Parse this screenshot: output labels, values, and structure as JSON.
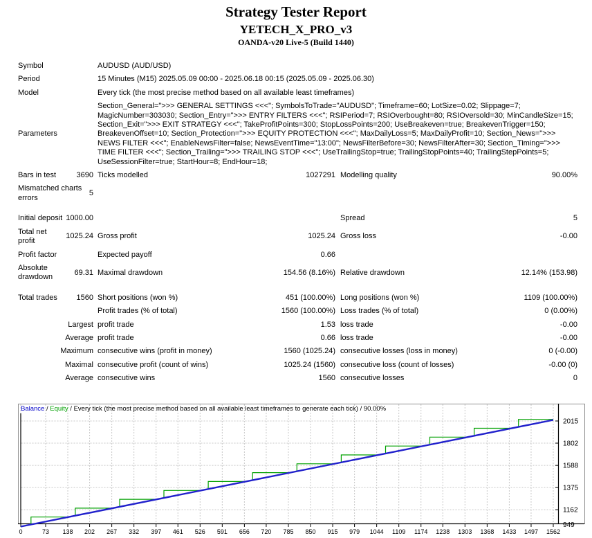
{
  "header": {
    "title": "Strategy Tester Report",
    "ea_name": "YETECH_X_PRO_v3",
    "server": "OANDA-v20 Live-5 (Build 1440)"
  },
  "info_rows": [
    {
      "label": "Symbol",
      "value": "AUDUSD (AUD/USD)"
    },
    {
      "label": "Period",
      "value": "15 Minutes (M15) 2025.05.09 00:00 - 2025.06.18 00:15 (2025.05.09 - 2025.06.30)"
    },
    {
      "label": "Model",
      "value": "Every tick (the most precise method based on all available least timeframes)"
    },
    {
      "label": "Parameters",
      "value": "Section_General=\">>> GENERAL SETTINGS <<<\"; SymbolsToTrade=\"AUDUSD\"; Timeframe=60; LotSize=0.02; Slippage=7; MagicNumber=303030; Section_Entry=\">>> ENTRY FILTERS <<<\"; RSIPeriod=7; RSIOverbought=80; RSIOversold=30; MinCandleSize=15; Section_Exit=\">>> EXIT STRATEGY <<<\"; TakeProfitPoints=300; StopLossPoints=200; UseBreakeven=true; BreakevenTrigger=150; BreakevenOffset=10; Section_Protection=\">>> EQUITY PROTECTION <<<\"; MaxDailyLoss=5; MaxDailyProfit=10; Section_News=\">>> NEWS FILTER <<<\"; EnableNewsFilter=false; NewsEventTime=\"13:00\"; NewsFilterBefore=30; NewsFilterAfter=30; Section_Timing=\">>> TIME FILTER <<<\"; Section_Trailing=\">>> TRAILING STOP <<<\"; UseTrailingStop=true; TrailingStopPoints=40; TrailingStepPoints=5; UseSessionFilter=true; StartHour=8; EndHour=18;"
    }
  ],
  "stat_rows": [
    {
      "l1": "Bars in test",
      "v1": "3690",
      "l2": "Ticks modelled",
      "v2": "1027291",
      "l3": "Modelling quality",
      "v3": "90.00%",
      "gap": false
    },
    {
      "l1": "Mismatched charts errors",
      "v1": "5",
      "l2": "",
      "v2": "",
      "l3": "",
      "v3": "",
      "gap": false
    },
    {
      "l1": "Initial deposit",
      "v1": "1000.00",
      "l2": "",
      "v2": "",
      "l3": "Spread",
      "v3": "5",
      "gap": true
    },
    {
      "l1": "Total net profit",
      "v1": "1025.24",
      "l2": "Gross profit",
      "v2": "1025.24",
      "l3": "Gross loss",
      "v3": "-0.00",
      "gap": false
    },
    {
      "l1": "Profit factor",
      "v1": "",
      "l2": "Expected payoff",
      "v2": "0.66",
      "l3": "",
      "v3": "",
      "gap": false
    },
    {
      "l1": "Absolute drawdown",
      "v1": "69.31",
      "l2": "Maximal drawdown",
      "v2": "154.56 (8.16%)",
      "l3": "Relative drawdown",
      "v3": "12.14% (153.98)",
      "gap": false
    },
    {
      "l1": "Total trades",
      "v1": "1560",
      "l2": "Short positions (won %)",
      "v2": "451 (100.00%)",
      "l3": "Long positions (won %)",
      "v3": "1109 (100.00%)",
      "gap": true
    },
    {
      "l1": "",
      "v1": "",
      "l2": "Profit trades (% of total)",
      "v2": "1560 (100.00%)",
      "l3": "Loss trades (% of total)",
      "v3": "0 (0.00%)",
      "gap": false
    },
    {
      "l1": "",
      "v1": "Largest",
      "l2": "profit trade",
      "v2": "1.53",
      "l3": "loss trade",
      "v3": "-0.00",
      "gap": false
    },
    {
      "l1": "",
      "v1": "Average",
      "l2": "profit trade",
      "v2": "0.66",
      "l3": "loss trade",
      "v3": "-0.00",
      "gap": false
    },
    {
      "l1": "",
      "v1": "Maximum",
      "l2": "consecutive wins (profit in money)",
      "v2": "1560 (1025.24)",
      "l3": "consecutive losses (loss in money)",
      "v3": "0 (-0.00)",
      "gap": false
    },
    {
      "l1": "",
      "v1": "Maximal",
      "l2": "consecutive profit (count of wins)",
      "v2": "1025.24 (1560)",
      "l3": "consecutive loss (count of losses)",
      "v3": "-0.00 (0)",
      "gap": false
    },
    {
      "l1": "",
      "v1": "Average",
      "l2": "consecutive wins",
      "v2": "1560",
      "l3": "consecutive losses",
      "v3": "0",
      "gap": false
    }
  ],
  "chart_data": {
    "type": "line",
    "legend": [
      {
        "text": "Balance",
        "color": "#0000C8"
      },
      {
        "text": " / ",
        "color": "#000000"
      },
      {
        "text": "Equity",
        "color": "#00A000"
      },
      {
        "text": " / Every tick (the most precise method based on all available least timeframes to generate each tick) / 90.00%",
        "color": "#000000"
      }
    ],
    "x_ticks": [
      0,
      73,
      138,
      202,
      267,
      332,
      397,
      461,
      526,
      591,
      656,
      720,
      785,
      850,
      915,
      979,
      1044,
      1109,
      1174,
      1238,
      1303,
      1368,
      1433,
      1497,
      1562
    ],
    "y_ticks": [
      2015,
      1802,
      1588,
      1375,
      1162,
      949
    ],
    "xlim": [
      0,
      1562
    ],
    "ylim": [
      949,
      2080
    ],
    "grid": true,
    "colors": {
      "grid": "#C8C8C8",
      "axis": "#000000",
      "frame": "#909090",
      "background": "#FFFFFF"
    },
    "series": [
      {
        "name": "Equity",
        "color": "#00A000",
        "width": 1.2,
        "points": [
          [
            0,
            1000
          ],
          [
            30,
            1019.7
          ],
          [
            30,
            1091.7
          ],
          [
            140,
            1091.7
          ],
          [
            160,
            1105
          ],
          [
            160,
            1177
          ],
          [
            270,
            1177
          ],
          [
            290,
            1190.3
          ],
          [
            290,
            1262.3
          ],
          [
            400,
            1262.3
          ],
          [
            420,
            1275.7
          ],
          [
            420,
            1347.7
          ],
          [
            530,
            1347.7
          ],
          [
            550,
            1361
          ],
          [
            550,
            1433
          ],
          [
            660,
            1433
          ],
          [
            680,
            1446.3
          ],
          [
            680,
            1518.3
          ],
          [
            790,
            1518.3
          ],
          [
            810,
            1531.7
          ],
          [
            810,
            1603.7
          ],
          [
            920,
            1603.7
          ],
          [
            940,
            1617
          ],
          [
            940,
            1689
          ],
          [
            1050,
            1689
          ],
          [
            1070,
            1702.3
          ],
          [
            1070,
            1774.3
          ],
          [
            1180,
            1774.3
          ],
          [
            1200,
            1787.6
          ],
          [
            1200,
            1859.6
          ],
          [
            1310,
            1859.6
          ],
          [
            1330,
            1873
          ],
          [
            1330,
            1945
          ],
          [
            1440,
            1945
          ],
          [
            1460,
            1958.3
          ],
          [
            1460,
            2030.3
          ],
          [
            1562,
            2030.3
          ]
        ]
      },
      {
        "name": "Balance",
        "color": "#2121CC",
        "width": 2.4,
        "points": [
          [
            0,
            1000
          ],
          [
            1562,
            2025.24
          ]
        ]
      }
    ]
  }
}
